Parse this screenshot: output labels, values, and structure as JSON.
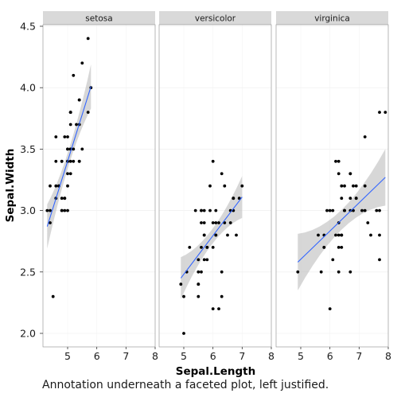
{
  "chart_data": {
    "type": "scatter",
    "facet_labels": [
      "setosa",
      "versicolor",
      "virginica"
    ],
    "xlabel": "Sepal.Length",
    "ylabel": "Sepal.Width",
    "xlim": [
      4.2,
      8.1
    ],
    "ylim": [
      1.9,
      4.55
    ],
    "x_ticks": [
      5,
      6,
      7,
      8
    ],
    "y_ticks": [
      2.0,
      2.5,
      3.0,
      3.5,
      4.0,
      4.5
    ],
    "y_tick_labels": [
      "2.0",
      "2.5",
      "3.0",
      "3.5",
      "4.0",
      "4.5"
    ],
    "colors": {
      "line": "#3366ff",
      "ribbon": "#bdbdbd",
      "point": "#000000",
      "strip": "#d9d9d9"
    },
    "facets": [
      {
        "name": "setosa",
        "points": [
          [
            5.1,
            3.5
          ],
          [
            4.9,
            3.0
          ],
          [
            4.7,
            3.2
          ],
          [
            4.6,
            3.1
          ],
          [
            5.0,
            3.6
          ],
          [
            5.4,
            3.9
          ],
          [
            4.6,
            3.4
          ],
          [
            5.0,
            3.4
          ],
          [
            4.4,
            2.9
          ],
          [
            4.9,
            3.1
          ],
          [
            5.4,
            3.7
          ],
          [
            4.8,
            3.4
          ],
          [
            4.8,
            3.0
          ],
          [
            4.3,
            3.0
          ],
          [
            5.8,
            4.0
          ],
          [
            5.7,
            4.4
          ],
          [
            5.4,
            3.9
          ],
          [
            5.1,
            3.5
          ],
          [
            5.7,
            3.8
          ],
          [
            5.1,
            3.8
          ],
          [
            5.4,
            3.4
          ],
          [
            5.1,
            3.7
          ],
          [
            4.6,
            3.6
          ],
          [
            5.1,
            3.3
          ],
          [
            4.8,
            3.4
          ],
          [
            5.0,
            3.0
          ],
          [
            5.0,
            3.4
          ],
          [
            5.2,
            3.5
          ],
          [
            5.2,
            3.4
          ],
          [
            4.7,
            3.2
          ],
          [
            4.8,
            3.1
          ],
          [
            5.4,
            3.4
          ],
          [
            5.2,
            4.1
          ],
          [
            5.5,
            4.2
          ],
          [
            4.9,
            3.1
          ],
          [
            5.0,
            3.2
          ],
          [
            5.5,
            3.5
          ],
          [
            4.9,
            3.6
          ],
          [
            4.4,
            3.0
          ],
          [
            5.1,
            3.4
          ],
          [
            5.0,
            3.5
          ],
          [
            4.5,
            2.3
          ],
          [
            4.4,
            3.2
          ],
          [
            5.0,
            3.5
          ],
          [
            5.1,
            3.8
          ],
          [
            4.8,
            3.0
          ],
          [
            5.1,
            3.8
          ],
          [
            4.6,
            3.2
          ],
          [
            5.3,
            3.7
          ],
          [
            5.0,
            3.3
          ]
        ],
        "fit": {
          "x": [
            4.3,
            5.8
          ],
          "y": [
            2.87,
            4.01
          ]
        }
      },
      {
        "name": "versicolor",
        "points": [
          [
            7.0,
            3.2
          ],
          [
            6.4,
            3.2
          ],
          [
            6.9,
            3.1
          ],
          [
            5.5,
            2.3
          ],
          [
            6.5,
            2.8
          ],
          [
            5.7,
            2.8
          ],
          [
            6.3,
            3.3
          ],
          [
            4.9,
            2.4
          ],
          [
            6.6,
            2.9
          ],
          [
            5.2,
            2.7
          ],
          [
            5.0,
            2.0
          ],
          [
            5.9,
            3.0
          ],
          [
            6.0,
            2.2
          ],
          [
            6.1,
            2.9
          ],
          [
            5.6,
            2.9
          ],
          [
            6.7,
            3.1
          ],
          [
            5.6,
            3.0
          ],
          [
            5.8,
            2.7
          ],
          [
            6.2,
            2.2
          ],
          [
            5.6,
            2.5
          ],
          [
            5.9,
            3.2
          ],
          [
            6.1,
            2.8
          ],
          [
            6.3,
            2.5
          ],
          [
            6.1,
            2.8
          ],
          [
            6.4,
            2.9
          ],
          [
            6.6,
            3.0
          ],
          [
            6.8,
            2.8
          ],
          [
            6.7,
            3.0
          ],
          [
            6.0,
            2.9
          ],
          [
            5.7,
            2.6
          ],
          [
            5.5,
            2.4
          ],
          [
            5.5,
            2.4
          ],
          [
            5.8,
            2.7
          ],
          [
            6.0,
            2.7
          ],
          [
            5.4,
            3.0
          ],
          [
            6.0,
            3.4
          ],
          [
            6.7,
            3.1
          ],
          [
            6.3,
            2.3
          ],
          [
            5.6,
            3.0
          ],
          [
            5.5,
            2.5
          ],
          [
            5.5,
            2.6
          ],
          [
            6.1,
            3.0
          ],
          [
            5.8,
            2.6
          ],
          [
            5.0,
            2.3
          ],
          [
            5.6,
            2.7
          ],
          [
            5.7,
            3.0
          ],
          [
            5.7,
            2.9
          ],
          [
            6.2,
            2.9
          ],
          [
            5.1,
            2.5
          ],
          [
            5.7,
            2.8
          ]
        ],
        "fit": {
          "x": [
            4.9,
            7.0
          ],
          "y": [
            2.45,
            3.11
          ]
        }
      },
      {
        "name": "virginica",
        "points": [
          [
            6.3,
            3.3
          ],
          [
            5.8,
            2.7
          ],
          [
            7.1,
            3.0
          ],
          [
            6.3,
            2.9
          ],
          [
            6.5,
            3.0
          ],
          [
            7.6,
            3.0
          ],
          [
            4.9,
            2.5
          ],
          [
            7.3,
            2.9
          ],
          [
            6.7,
            2.5
          ],
          [
            7.2,
            3.6
          ],
          [
            6.5,
            3.2
          ],
          [
            6.4,
            2.7
          ],
          [
            6.8,
            3.0
          ],
          [
            5.7,
            2.5
          ],
          [
            5.8,
            2.8
          ],
          [
            6.4,
            3.2
          ],
          [
            6.5,
            3.0
          ],
          [
            7.7,
            3.8
          ],
          [
            7.7,
            2.6
          ],
          [
            6.0,
            2.2
          ],
          [
            6.9,
            3.2
          ],
          [
            5.6,
            2.8
          ],
          [
            7.7,
            2.8
          ],
          [
            6.3,
            2.7
          ],
          [
            6.7,
            3.3
          ],
          [
            7.2,
            3.2
          ],
          [
            6.2,
            2.8
          ],
          [
            6.1,
            3.0
          ],
          [
            6.4,
            2.8
          ],
          [
            7.2,
            3.0
          ],
          [
            7.4,
            2.8
          ],
          [
            7.9,
            3.8
          ],
          [
            6.4,
            2.8
          ],
          [
            6.3,
            2.8
          ],
          [
            6.1,
            2.6
          ],
          [
            7.7,
            3.0
          ],
          [
            6.3,
            3.4
          ],
          [
            6.4,
            3.1
          ],
          [
            6.0,
            3.0
          ],
          [
            6.9,
            3.1
          ],
          [
            6.7,
            3.1
          ],
          [
            6.9,
            3.1
          ],
          [
            5.8,
            2.7
          ],
          [
            6.8,
            3.2
          ],
          [
            6.7,
            3.3
          ],
          [
            6.7,
            3.0
          ],
          [
            6.3,
            2.5
          ],
          [
            6.5,
            3.0
          ],
          [
            6.2,
            3.4
          ],
          [
            5.9,
            3.0
          ]
        ],
        "fit": {
          "x": [
            4.9,
            7.9
          ],
          "y": [
            2.58,
            3.27
          ]
        }
      }
    ]
  },
  "annotation": "Annotation underneath a faceted plot, left justified."
}
